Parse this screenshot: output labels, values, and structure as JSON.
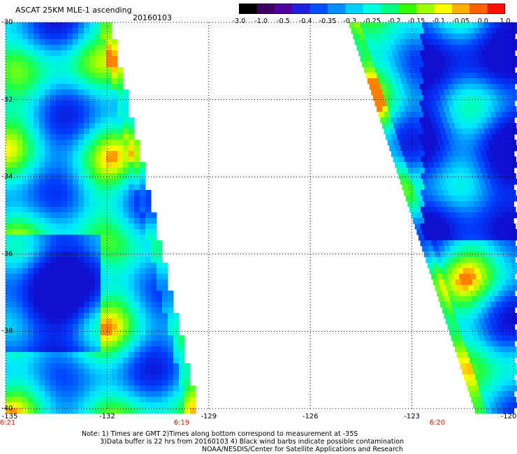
{
  "header": {
    "title": "ASCAT 25KM MLE-1 ascending",
    "date": "20160103"
  },
  "colorbar": {
    "labels": [
      "-3.0",
      "-1.0",
      "-0.5",
      "-0.4",
      "-0.35",
      "-0.3",
      "-0.25",
      "-0.2",
      "-0.15",
      "-0.1",
      "-0.05",
      "0.0",
      "1.0"
    ],
    "colors": [
      "#000000",
      "#400060",
      "#5000a0",
      "#2020e0",
      "#0050ff",
      "#0090ff",
      "#00d0ff",
      "#00ffe0",
      "#00ff80",
      "#30ff00",
      "#a0ff00",
      "#ffff00",
      "#ffb000",
      "#ff6000",
      "#ff1000"
    ]
  },
  "map": {
    "lat_labels": [
      "-30",
      "-32",
      "-34",
      "-36",
      "-38",
      "-40"
    ],
    "lon_labels": [
      "-135",
      "-132",
      "-129",
      "-126",
      "-123",
      "-120"
    ],
    "swath_times": [
      "6:21",
      "6:19",
      "6:20"
    ]
  },
  "notes": {
    "line1": "Note: 1) Times are GMT 2)Times along bottom correspond to measurement at -35S",
    "line2": "3)Data buffer is 22 hrs from 20160103 4) Black wind barbs indicate possible contamination",
    "line3": "NOAA/NESDIS/Center for Satellite Applications and Research"
  }
}
